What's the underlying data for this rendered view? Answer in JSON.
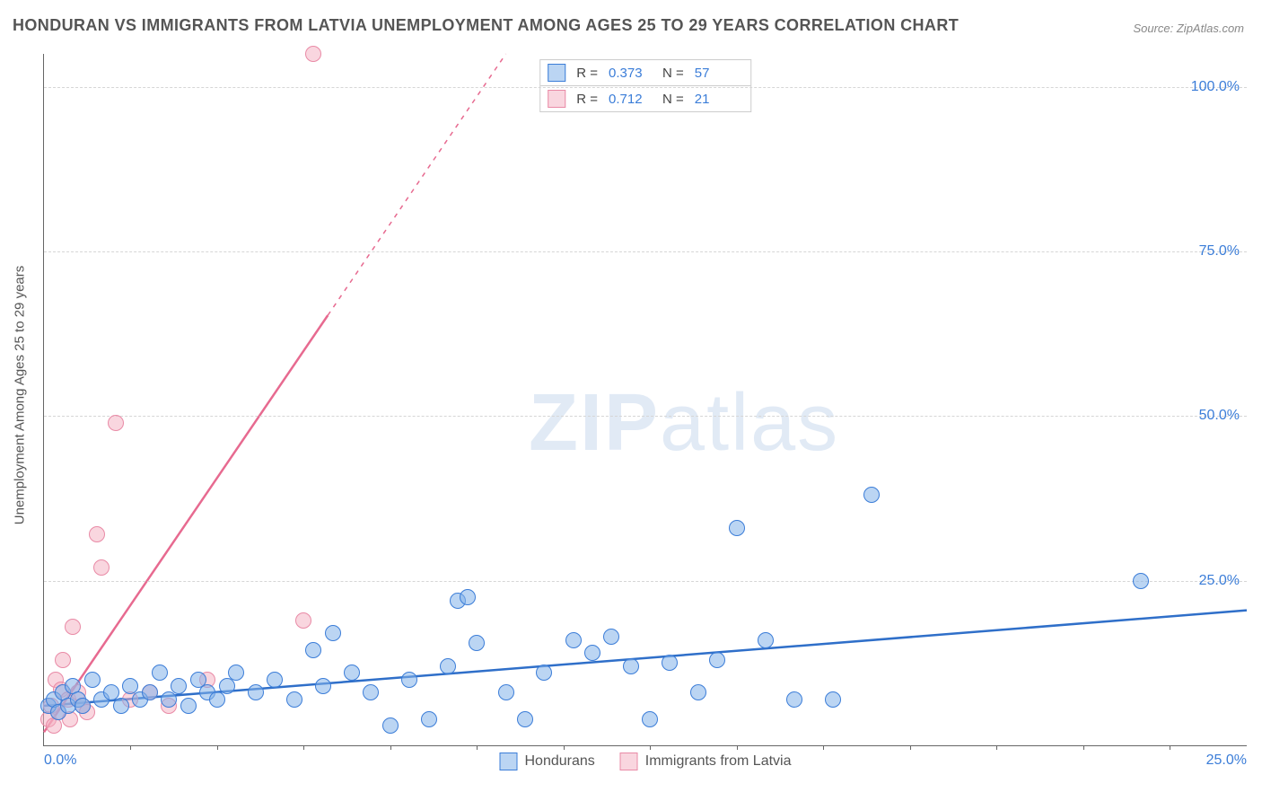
{
  "title": "HONDURAN VS IMMIGRANTS FROM LATVIA UNEMPLOYMENT AMONG AGES 25 TO 29 YEARS CORRELATION CHART",
  "source": "Source: ZipAtlas.com",
  "yaxis_label": "Unemployment Among Ages 25 to 29 years",
  "watermark_zip": "ZIP",
  "watermark_atlas": "atlas",
  "chart": {
    "type": "scatter",
    "background_color": "#ffffff",
    "grid_color": "#d6d6d6",
    "grid_dash": "4 4",
    "axis_color": "#666666",
    "tick_color": "#3b7dd8",
    "tick_fontsize": 16,
    "title_fontsize": 18,
    "xlim": [
      0,
      25
    ],
    "ylim": [
      0,
      105
    ],
    "yticks": [
      {
        "v": 25,
        "label": "25.0%"
      },
      {
        "v": 50,
        "label": "50.0%"
      },
      {
        "v": 75,
        "label": "75.0%"
      },
      {
        "v": 100,
        "label": "100.0%"
      }
    ],
    "xticks": [
      {
        "v": 0,
        "label": "0.0%"
      },
      {
        "v": 25,
        "label": "25.0%"
      }
    ],
    "xtick_marks": [
      1.8,
      3.6,
      5.4,
      7.2,
      9.0,
      10.8,
      12.6,
      14.4,
      16.2,
      18.0,
      19.8,
      21.6,
      23.4
    ]
  },
  "series": {
    "blue": {
      "name": "Hondurans",
      "marker_fill": "rgba(132,178,234,0.55)",
      "marker_stroke": "#3b7dd8",
      "line_color": "#2f6fc9",
      "line_width": 2.5,
      "marker_size": 16,
      "R": "0.373",
      "N": "57",
      "trend": {
        "x1": 0,
        "y1": 6.0,
        "x2": 25,
        "y2": 20.5
      },
      "points": [
        [
          0.1,
          6
        ],
        [
          0.2,
          7
        ],
        [
          0.3,
          5
        ],
        [
          0.4,
          8
        ],
        [
          0.5,
          6
        ],
        [
          0.6,
          9
        ],
        [
          0.7,
          7
        ],
        [
          0.8,
          6
        ],
        [
          1.0,
          10
        ],
        [
          1.2,
          7
        ],
        [
          1.4,
          8
        ],
        [
          1.6,
          6
        ],
        [
          1.8,
          9
        ],
        [
          2.0,
          7
        ],
        [
          2.2,
          8
        ],
        [
          2.4,
          11
        ],
        [
          2.6,
          7
        ],
        [
          2.8,
          9
        ],
        [
          3.0,
          6
        ],
        [
          3.2,
          10
        ],
        [
          3.4,
          8
        ],
        [
          3.6,
          7
        ],
        [
          3.8,
          9
        ],
        [
          4.0,
          11
        ],
        [
          4.4,
          8
        ],
        [
          4.8,
          10
        ],
        [
          5.2,
          7
        ],
        [
          5.6,
          14.5
        ],
        [
          5.8,
          9
        ],
        [
          6.0,
          17
        ],
        [
          6.4,
          11
        ],
        [
          6.8,
          8
        ],
        [
          7.2,
          3
        ],
        [
          7.6,
          10
        ],
        [
          8.0,
          4
        ],
        [
          8.4,
          12
        ],
        [
          8.6,
          22
        ],
        [
          8.8,
          22.5
        ],
        [
          9.0,
          15.5
        ],
        [
          9.6,
          8
        ],
        [
          10.0,
          4
        ],
        [
          10.4,
          11
        ],
        [
          11.0,
          16
        ],
        [
          11.4,
          14
        ],
        [
          11.8,
          16.5
        ],
        [
          12.2,
          12
        ],
        [
          12.6,
          4
        ],
        [
          13.0,
          12.5
        ],
        [
          13.6,
          8
        ],
        [
          14.0,
          13
        ],
        [
          14.4,
          33
        ],
        [
          15.0,
          16
        ],
        [
          15.6,
          7
        ],
        [
          16.4,
          7
        ],
        [
          17.2,
          38
        ],
        [
          22.8,
          25
        ]
      ]
    },
    "pink": {
      "name": "Immigrants from Latvia",
      "marker_fill": "rgba(244,174,192,0.5)",
      "marker_stroke": "#e98aa6",
      "line_color": "#e76a90",
      "line_width": 2.5,
      "marker_size": 16,
      "R": "0.712",
      "N": "21",
      "trend": {
        "x1": 0,
        "y1": 2.0,
        "x2": 9.6,
        "y2": 105
      },
      "trend_solid_end_x": 5.9,
      "points": [
        [
          0.1,
          4
        ],
        [
          0.15,
          6
        ],
        [
          0.2,
          3
        ],
        [
          0.25,
          10
        ],
        [
          0.3,
          5
        ],
        [
          0.35,
          8.5
        ],
        [
          0.4,
          13
        ],
        [
          0.5,
          7
        ],
        [
          0.55,
          4
        ],
        [
          0.6,
          18
        ],
        [
          0.7,
          8
        ],
        [
          0.8,
          6
        ],
        [
          0.9,
          5
        ],
        [
          1.1,
          32
        ],
        [
          1.2,
          27
        ],
        [
          1.5,
          49
        ],
        [
          1.8,
          7
        ],
        [
          2.2,
          8
        ],
        [
          2.6,
          6
        ],
        [
          3.4,
          10
        ],
        [
          5.4,
          19
        ],
        [
          5.6,
          105
        ]
      ]
    }
  },
  "legend_top": {
    "label_R": "R =",
    "label_N": "N ="
  },
  "legend_bottom": {
    "items": [
      "blue",
      "pink"
    ]
  }
}
